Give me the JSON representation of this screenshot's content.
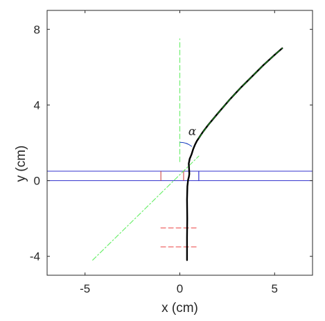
{
  "chart_data": {
    "type": "line",
    "title": "",
    "xlabel": "x (cm)",
    "ylabel": "y (cm)",
    "xlim": [
      -7,
      7
    ],
    "ylim": [
      -5,
      9
    ],
    "xticks": [
      -5,
      0,
      5
    ],
    "xtick_labels": [
      "-5",
      "0",
      "5"
    ],
    "yticks": [
      -4,
      0,
      4,
      8
    ],
    "ytick_labels": [
      "-4",
      "0",
      "4",
      "8"
    ],
    "grid": false,
    "legend": null,
    "annotations": [
      {
        "text": "α",
        "x": 0.45,
        "y": 2.4
      }
    ],
    "series": [
      {
        "role": "trajectory",
        "style": "solid",
        "color": "#000000",
        "x": [
          0.38,
          0.38,
          0.39,
          0.38,
          0.4,
          0.44,
          0.48,
          0.5,
          0.49,
          0.47,
          0.52,
          0.62,
          0.7,
          0.8,
          0.9,
          1.0,
          1.2,
          1.5,
          2.0,
          2.6,
          3.2,
          3.8,
          4.4,
          5.0,
          5.4
        ],
        "y": [
          -4.2,
          -3.0,
          -2.0,
          -1.0,
          -0.3,
          0.05,
          0.2,
          0.35,
          0.6,
          0.9,
          1.15,
          1.4,
          1.65,
          1.9,
          2.1,
          2.25,
          2.55,
          2.95,
          3.55,
          4.25,
          4.9,
          5.5,
          6.1,
          6.65,
          7.0
        ]
      },
      {
        "role": "fitted-line",
        "style": "dashed",
        "color": "#1a8c1a",
        "x": [
          1.0,
          1.5,
          2.0,
          2.6,
          3.2,
          3.8,
          4.4,
          5.0,
          5.4
        ],
        "y": [
          2.25,
          2.95,
          3.55,
          4.25,
          4.9,
          5.5,
          6.1,
          6.65,
          7.0
        ]
      },
      {
        "role": "vertical-reference",
        "style": "dashed",
        "color": "#66ee66",
        "x": [
          0.0,
          0.0
        ],
        "y": [
          1.0,
          7.5
        ]
      },
      {
        "role": "extrapolated-line",
        "style": "dashdot",
        "color": "#66ee66",
        "x": [
          -4.6,
          1.0
        ],
        "y": [
          -4.2,
          1.3
        ]
      },
      {
        "role": "marker-line-upper",
        "style": "dashed",
        "color": "#ee5555",
        "x": [
          -1.0,
          1.0
        ],
        "y": [
          -2.5,
          -2.5
        ]
      },
      {
        "role": "marker-line-lower",
        "style": "dashed",
        "color": "#ee5555",
        "x": [
          -1.0,
          1.0
        ],
        "y": [
          -3.5,
          -3.5
        ]
      }
    ],
    "shapes": [
      {
        "role": "plate-left",
        "color": "#3333cc",
        "x": [
          -7.0,
          1.0
        ],
        "y": [
          0.0,
          0.5
        ]
      },
      {
        "role": "plate-right",
        "color": "#3333cc",
        "x": [
          1.0,
          7.0
        ],
        "y": [
          0.0,
          0.5
        ]
      },
      {
        "role": "slit-edge",
        "color": "#cc3333",
        "x": [
          -1.0,
          -1.0
        ],
        "y": [
          0.0,
          0.5
        ]
      },
      {
        "role": "slit-edge",
        "color": "#cc3333",
        "x": [
          0.2,
          0.2
        ],
        "y": [
          0.0,
          0.5
        ]
      }
    ]
  }
}
